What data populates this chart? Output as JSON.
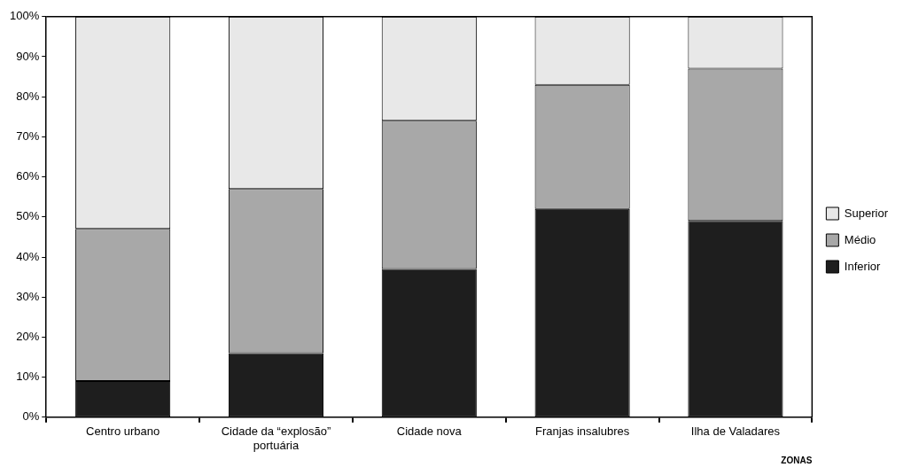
{
  "chart_data": {
    "type": "bar",
    "stacked": true,
    "xlabel": "ZONAS",
    "categories": [
      "Centro urbano",
      "Cidade da “explosão” portuária",
      "Cidade nova",
      "Franjas insalubres",
      "Ilha de Valadares"
    ],
    "series": [
      {
        "name": "Inferior",
        "color": "#1e1e1e",
        "values": [
          9,
          16,
          37,
          52,
          49
        ]
      },
      {
        "name": "Médio",
        "color": "#a8a8a8",
        "values": [
          38,
          41,
          37,
          31,
          38
        ]
      },
      {
        "name": "Superior",
        "color": "#e8e8e8",
        "values": [
          53,
          43,
          26,
          17,
          13
        ]
      }
    ],
    "ylim": [
      0,
      100
    ],
    "yticks": [
      {
        "value": 0,
        "label": "0%"
      },
      {
        "value": 10,
        "label": "10%"
      },
      {
        "value": 20,
        "label": "20%"
      },
      {
        "value": 30,
        "label": "30%"
      },
      {
        "value": 40,
        "label": "40%"
      },
      {
        "value": 50,
        "label": "50%"
      },
      {
        "value": 60,
        "label": "60%"
      },
      {
        "value": 70,
        "label": "70%"
      },
      {
        "value": 80,
        "label": "80%"
      },
      {
        "value": 90,
        "label": "90%"
      },
      {
        "value": 100,
        "label": "100%"
      }
    ],
    "grid": false,
    "legend": "right"
  }
}
